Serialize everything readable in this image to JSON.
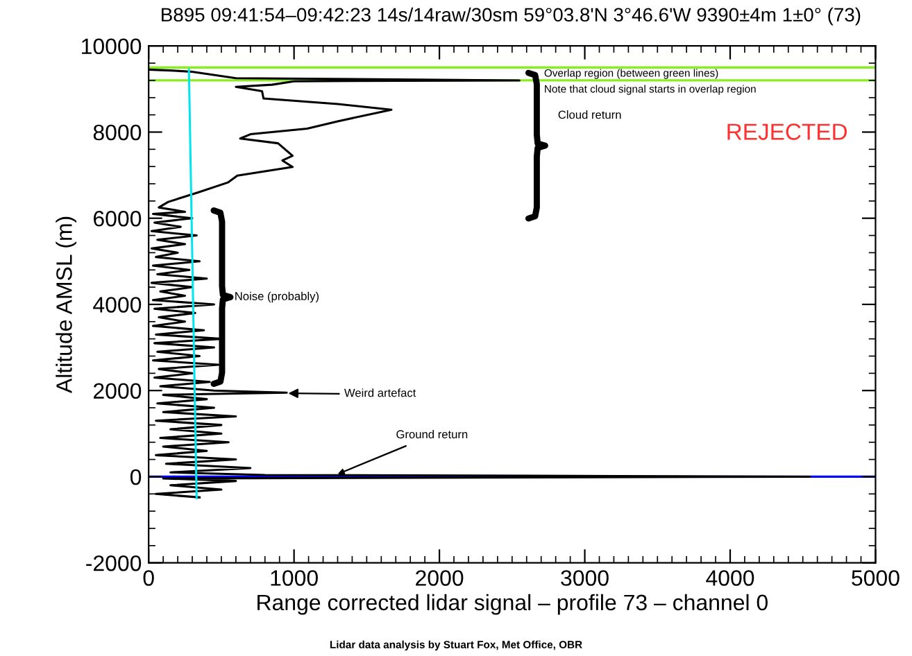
{
  "chart_data": {
    "type": "line",
    "title": "B895 09:41:54–09:42:23 14s/14raw/30sm 59°03.8'N 3°46.6'W 9390±4m 1±0° (73)",
    "xlabel": "Range corrected lidar signal – profile 73 – channel 0",
    "ylabel": "Altitude AMSL (m)",
    "xlim": [
      0,
      5000
    ],
    "ylim": [
      -2000,
      10000
    ],
    "xticks": [
      0,
      1000,
      2000,
      3000,
      4000,
      5000
    ],
    "yticks": [
      -2000,
      0,
      2000,
      4000,
      6000,
      8000,
      10000
    ],
    "grid": false,
    "legend": false,
    "marker": "none",
    "line_style": "solid",
    "series": [
      {
        "color": "#000000",
        "x": [
          0,
          150,
          300,
          600,
          2550,
          1000,
          850,
          600,
          780,
          790,
          1300,
          1670,
          1300,
          1090,
          700,
          630,
          890,
          990,
          920,
          990,
          610,
          545,
          340,
          135,
          70,
          250,
          30,
          300,
          40,
          220,
          20,
          330,
          60,
          250,
          20,
          200,
          50,
          350,
          30,
          280,
          60,
          400,
          20,
          300,
          80,
          250,
          30,
          450,
          40,
          320,
          70,
          250,
          30,
          380,
          50,
          500,
          40,
          450,
          60,
          350,
          30,
          480,
          70,
          300,
          40,
          420,
          80,
          450,
          950,
          100,
          400,
          60,
          450,
          100,
          600,
          50,
          500,
          150,
          500,
          80,
          550,
          100,
          400,
          50,
          600,
          120,
          700,
          150,
          800,
          4550,
          100,
          600,
          150,
          500,
          50,
          350
        ],
        "values": [
          9450,
          9430,
          9400,
          9250,
          9200,
          9180,
          9100,
          9050,
          8950,
          8780,
          8650,
          8520,
          8250,
          8080,
          7950,
          7850,
          7740,
          7450,
          7340,
          7190,
          6990,
          6830,
          6600,
          6380,
          6250,
          6150,
          6100,
          6000,
          5900,
          5800,
          5700,
          5600,
          5500,
          5400,
          5300,
          5200,
          5100,
          5000,
          4900,
          4800,
          4700,
          4600,
          4500,
          4400,
          4300,
          4200,
          4100,
          4000,
          3900,
          3800,
          3700,
          3600,
          3500,
          3400,
          3300,
          3200,
          3100,
          3000,
          2900,
          2800,
          2700,
          2600,
          2500,
          2400,
          2300,
          2200,
          2100,
          2000,
          1950,
          1900,
          1800,
          1700,
          1600,
          1500,
          1400,
          1300,
          1200,
          1100,
          1000,
          900,
          800,
          700,
          600,
          500,
          400,
          300,
          200,
          100,
          40,
          0,
          -40,
          -100,
          -200,
          -300,
          -400,
          -480
        ]
      },
      {
        "color": "#00e5ee",
        "x": [
          277,
          330
        ],
        "values": [
          9450,
          -500
        ]
      }
    ],
    "ref_lines": [
      {
        "axis": "y",
        "value": 9500,
        "color": "#88ee22"
      },
      {
        "axis": "y",
        "value": 9200,
        "color": "#88ee22"
      },
      {
        "axis": "y",
        "value": 0,
        "color": "#0000ff"
      }
    ],
    "annotations": [
      {
        "text": "Overlap region (between green lines)",
        "x": 2720,
        "y": 9350
      },
      "Note that cloud signal starts in overlap region",
      "Cloud return",
      "REJECTED",
      "Noise (probably)",
      "Weird artefact",
      {
        "text": "Ground return",
        "x": 1300,
        "y": 60
      },
      "Lidar data analysis by Stuart Fox, Met Office, OBR"
    ]
  }
}
